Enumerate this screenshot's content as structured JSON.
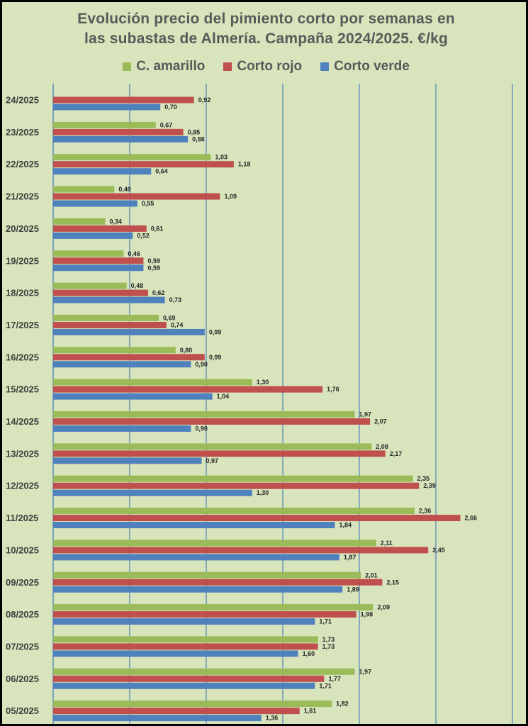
{
  "chart_data": {
    "type": "bar",
    "orientation": "horizontal",
    "title_lines": [
      "Evolución precio del pimiento corto por semanas en",
      "las subastas de Almería. Campaña 2024/2025. €/kg"
    ],
    "legend": "top",
    "grid": "vertical",
    "xlim": [
      0,
      3.0
    ],
    "categories": [
      "24/2025",
      "23/2025",
      "22/2025",
      "21/2025",
      "20/2025",
      "19/2025",
      "18/2025",
      "17/2025",
      "16/2025",
      "15/2025",
      "14/2025",
      "13/2025",
      "12/2025",
      "11/2025",
      "10/2025",
      "09/2025",
      "08/2025",
      "07/2025",
      "06/2025",
      "05/2025"
    ],
    "series": [
      {
        "name": "C. amarillo",
        "color": "#9bbb59",
        "values": [
          null,
          0.67,
          1.03,
          0.4,
          0.34,
          0.46,
          0.48,
          0.69,
          0.8,
          1.3,
          1.97,
          2.08,
          2.35,
          2.36,
          2.11,
          2.01,
          2.09,
          1.73,
          1.97,
          1.82
        ],
        "labels": [
          "",
          "0,67",
          "1,03",
          "0,40",
          "0,34",
          "0,46",
          "0,48",
          "0,69",
          "0,80",
          "1,30",
          "1,97",
          "2,08",
          "2,35",
          "2,36",
          "2,11",
          "2,01",
          "2,09",
          "1,73",
          "1,97",
          "1,82"
        ]
      },
      {
        "name": "Corto rojo",
        "color": "#c0504d",
        "values": [
          0.92,
          0.85,
          1.18,
          1.09,
          0.61,
          0.59,
          0.62,
          0.74,
          0.99,
          1.76,
          2.07,
          2.17,
          2.39,
          2.66,
          2.45,
          2.15,
          1.98,
          1.73,
          1.77,
          1.61
        ],
        "labels": [
          "0,92",
          "0,85",
          "1,18",
          "1,09",
          "0,61",
          "0,59",
          "0,62",
          "0,74",
          "0,99",
          "1,76",
          "2,07",
          "2,17",
          "2,39",
          "2,66",
          "2,45",
          "2,15",
          "1,98",
          "1,73",
          "1,77",
          "1,61"
        ]
      },
      {
        "name": "Corto verde",
        "color": "#4f81bd",
        "values": [
          0.7,
          0.88,
          0.64,
          0.55,
          0.52,
          0.59,
          0.73,
          0.99,
          0.9,
          1.04,
          0.9,
          0.97,
          1.3,
          1.84,
          1.87,
          1.89,
          1.71,
          1.6,
          1.71,
          1.36
        ],
        "labels": [
          "0,70",
          "0,88",
          "0,64",
          "0,55",
          "0,52",
          "0,59",
          "0,73",
          "0,99",
          "0,90",
          "1,04",
          "0,90",
          "0,97",
          "1,30",
          "1,84",
          "1,87",
          "1,89",
          "1,71",
          "1,60",
          "1,71",
          "1,36"
        ]
      }
    ]
  }
}
